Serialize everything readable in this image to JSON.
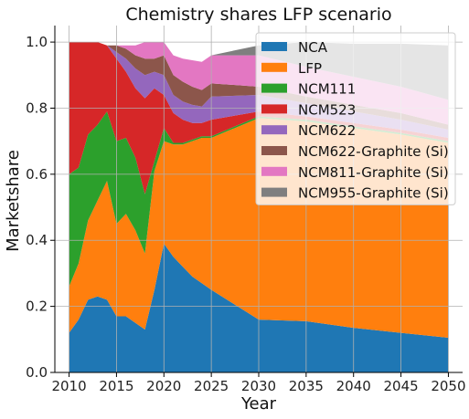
{
  "chart_data": {
    "type": "area",
    "title": "Chemistry shares LFP scenario",
    "xlabel": "Year",
    "ylabel": "Marketshare",
    "xlim": [
      2008.5,
      2051.5
    ],
    "ylim": [
      0,
      1.05
    ],
    "x_ticks": [
      2010,
      2015,
      2020,
      2025,
      2030,
      2035,
      2040,
      2045,
      2050
    ],
    "y_ticks": [
      0.0,
      0.2,
      0.4,
      0.6,
      0.8,
      1.0
    ],
    "grid": true,
    "legend_position": "top-right",
    "x": [
      2010,
      2011,
      2012,
      2013,
      2014,
      2015,
      2016,
      2017,
      2018,
      2019,
      2020,
      2021,
      2022,
      2023,
      2024,
      2025,
      2030,
      2035,
      2040,
      2045,
      2050
    ],
    "series": [
      {
        "name": "NCA",
        "color": "#1f77b4",
        "values": [
          0.12,
          0.16,
          0.22,
          0.23,
          0.22,
          0.17,
          0.17,
          0.15,
          0.13,
          0.25,
          0.39,
          0.35,
          0.32,
          0.29,
          0.27,
          0.25,
          0.16,
          0.155,
          0.135,
          0.12,
          0.105
        ]
      },
      {
        "name": "LFP",
        "color": "#ff7f0e",
        "values": [
          0.14,
          0.17,
          0.24,
          0.29,
          0.36,
          0.28,
          0.31,
          0.28,
          0.23,
          0.36,
          0.31,
          0.34,
          0.37,
          0.41,
          0.44,
          0.46,
          0.61,
          0.605,
          0.605,
          0.6,
          0.59
        ]
      },
      {
        "name": "NCM111",
        "color": "#2ca02c",
        "values": [
          0.34,
          0.29,
          0.26,
          0.23,
          0.21,
          0.25,
          0.23,
          0.22,
          0.18,
          0.03,
          0.04,
          0.005,
          0.005,
          0.005,
          0.005,
          0.005,
          0.005,
          0.005,
          0.005,
          0.005,
          0.005
        ]
      },
      {
        "name": "NCM523",
        "color": "#d62728",
        "values": [
          0.4,
          0.38,
          0.28,
          0.25,
          0.2,
          0.25,
          0.2,
          0.21,
          0.29,
          0.22,
          0.1,
          0.09,
          0.07,
          0.05,
          0.04,
          0.05,
          0.015,
          0.01,
          0.01,
          0.01,
          0.01
        ]
      },
      {
        "name": "NCM622",
        "color": "#9467bd",
        "values": [
          0.0,
          0.0,
          0.0,
          0.0,
          0.0,
          0.02,
          0.04,
          0.06,
          0.07,
          0.05,
          0.06,
          0.055,
          0.055,
          0.055,
          0.05,
          0.07,
          0.05,
          0.04,
          0.035,
          0.03,
          0.025
        ]
      },
      {
        "name": "NCM622-Graphite (Si)",
        "color": "#8c564b",
        "values": [
          0.0,
          0.0,
          0.0,
          0.0,
          0.0,
          0.02,
          0.03,
          0.04,
          0.05,
          0.04,
          0.06,
          0.06,
          0.06,
          0.055,
          0.05,
          0.04,
          0.025,
          0.02,
          0.02,
          0.02,
          0.015
        ]
      },
      {
        "name": "NCM811-Graphite (Si)",
        "color": "#e377c2",
        "values": [
          0.0,
          0.0,
          0.0,
          0.0,
          0.0,
          0.0,
          0.01,
          0.03,
          0.05,
          0.05,
          0.04,
          0.06,
          0.07,
          0.08,
          0.085,
          0.085,
          0.095,
          0.09,
          0.085,
          0.08,
          0.075
        ]
      },
      {
        "name": "NCM955-Graphite (Si)",
        "color": "#7f7f7f",
        "values": [
          0.0,
          0.0,
          0.0,
          0.0,
          0.0,
          0.0,
          0.0,
          0.0,
          0.0,
          0.0,
          0.0,
          0.0,
          0.0,
          0.0,
          0.0,
          0.0,
          0.03,
          0.075,
          0.1,
          0.13,
          0.165
        ]
      }
    ]
  }
}
